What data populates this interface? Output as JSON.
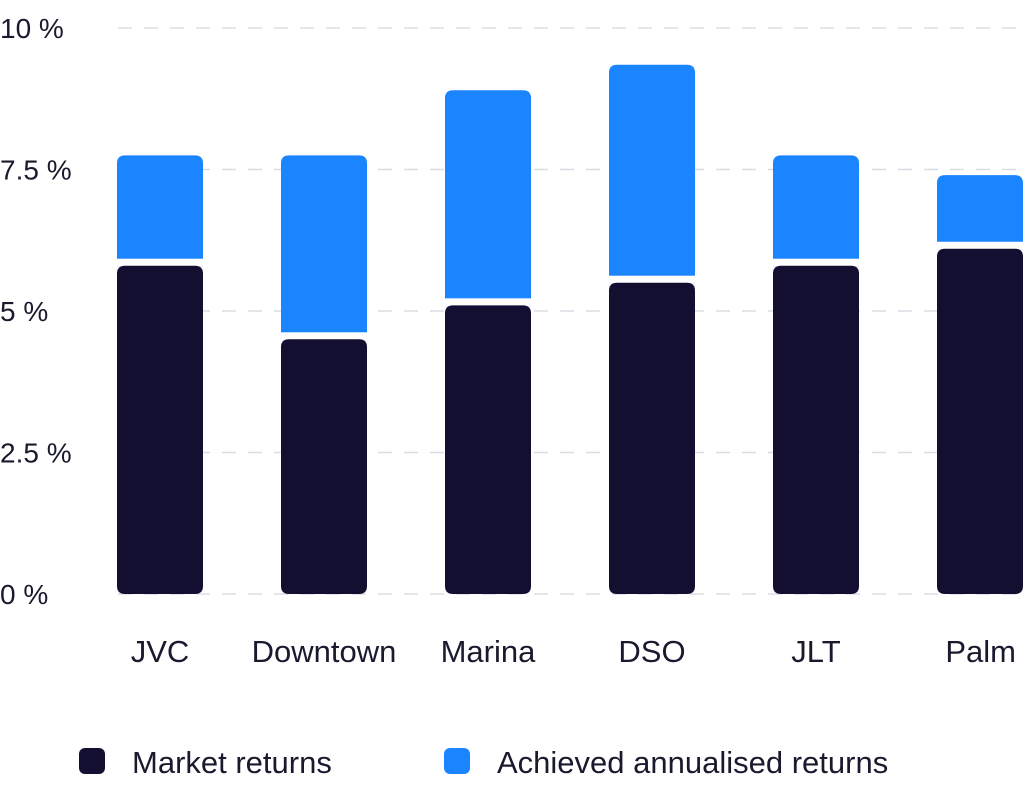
{
  "chart_data": {
    "type": "bar",
    "stacked": true,
    "categories": [
      "JVC",
      "Downtown",
      "Marina",
      "DSO",
      "JLT",
      "Palm"
    ],
    "series": [
      {
        "name": "Market returns",
        "color": "#130f30",
        "values": [
          5.8,
          4.5,
          5.1,
          5.5,
          5.8,
          6.1
        ]
      },
      {
        "name": "Achieved annualised returns",
        "color": "#1a85ff",
        "values": [
          1.95,
          3.25,
          3.8,
          3.85,
          1.95,
          1.3
        ]
      }
    ],
    "yticks": [
      "0 %",
      "2.5 %",
      "5 %",
      "7.5 %",
      "10 %"
    ],
    "ytick_values": [
      0,
      2.5,
      5,
      7.5,
      10
    ],
    "ylim": [
      0,
      10
    ],
    "grid": true,
    "legend_position": "bottom",
    "title": "",
    "xlabel": "",
    "ylabel": ""
  }
}
